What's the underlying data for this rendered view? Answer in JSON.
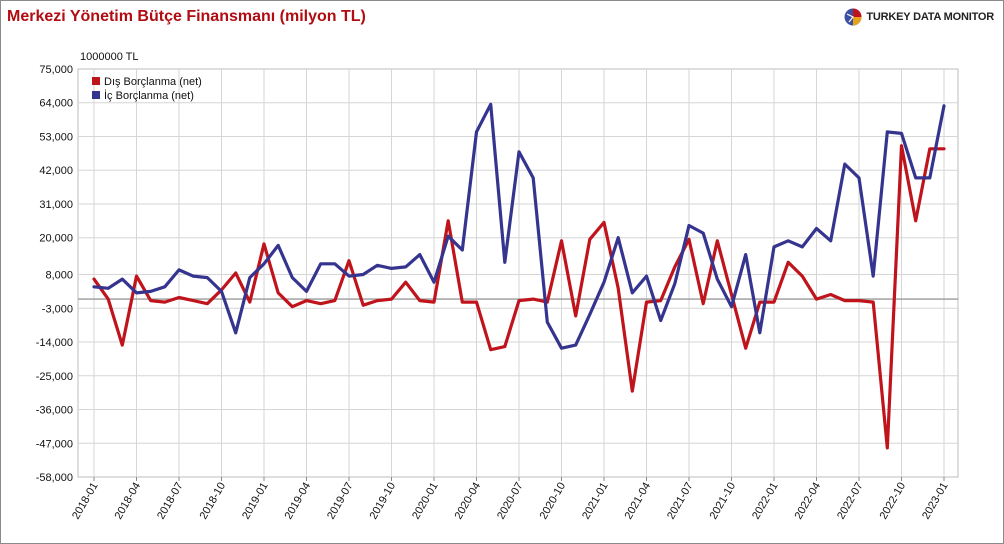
{
  "header": {
    "title": "Merkezi Yönetim Bütçe Finansmanı (milyon TL)",
    "brand": "TURKEY DATA MONITOR",
    "colors": {
      "title": "#b00c12",
      "brand_text": "#222222"
    }
  },
  "chart_data": {
    "type": "line",
    "title": "Merkezi Yönetim Bütçe Finansmanı (milyon TL)",
    "unit_label": "1000000 TL",
    "xlabel": "",
    "ylabel": "",
    "ylim": [
      -58000,
      75000
    ],
    "yticks": [
      75000,
      64000,
      53000,
      42000,
      31000,
      20000,
      8000,
      -3000,
      -14000,
      -25000,
      -36000,
      -47000,
      -58000
    ],
    "ytick_labels": [
      "75,000",
      "64,000",
      "53,000",
      "42,000",
      "31,000",
      "20,000",
      "8,000",
      "-3,000",
      "-14,000",
      "-25,000",
      "-36,000",
      "-47,000",
      "-58,000"
    ],
    "x": [
      "2018-01",
      "2018-02",
      "2018-03",
      "2018-04",
      "2018-05",
      "2018-06",
      "2018-07",
      "2018-08",
      "2018-09",
      "2018-10",
      "2018-11",
      "2018-12",
      "2019-01",
      "2019-02",
      "2019-03",
      "2019-04",
      "2019-05",
      "2019-06",
      "2019-07",
      "2019-08",
      "2019-09",
      "2019-10",
      "2019-11",
      "2019-12",
      "2020-01",
      "2020-02",
      "2020-03",
      "2020-04",
      "2020-05",
      "2020-06",
      "2020-07",
      "2020-08",
      "2020-09",
      "2020-10",
      "2020-11",
      "2020-12",
      "2021-01",
      "2021-02",
      "2021-03",
      "2021-04",
      "2021-05",
      "2021-06",
      "2021-07",
      "2021-08",
      "2021-09",
      "2021-10",
      "2021-11",
      "2021-12",
      "2022-01",
      "2022-02",
      "2022-03",
      "2022-04",
      "2022-05",
      "2022-06",
      "2022-07",
      "2022-08",
      "2022-09",
      "2022-10",
      "2022-11",
      "2022-12",
      "2023-01"
    ],
    "xtick_labels": [
      "2018-01",
      "2018-04",
      "2018-07",
      "2018-10",
      "2019-01",
      "2019-04",
      "2019-07",
      "2019-10",
      "2020-01",
      "2020-04",
      "2020-07",
      "2020-10",
      "2021-01",
      "2021-04",
      "2021-07",
      "2021-10",
      "2022-01",
      "2022-04",
      "2022-07",
      "2022-10",
      "2023-01"
    ],
    "zero_line": 0,
    "grid": true,
    "legend_position": "top-left",
    "series": [
      {
        "name": "Dış Borçlanma (net)",
        "color": "#c0141c",
        "values": [
          6500,
          0,
          -15000,
          7500,
          -500,
          -1000,
          500,
          -500,
          -1500,
          3000,
          8500,
          -1000,
          18000,
          2000,
          -2500,
          -500,
          -1500,
          -500,
          12500,
          -2000,
          -500,
          0,
          5500,
          -500,
          -1000,
          25500,
          -1000,
          -1000,
          -16500,
          -15500,
          -500,
          0,
          -1000,
          19000,
          -5500,
          19500,
          25000,
          3500,
          -30000,
          -1000,
          -500,
          10500,
          19500,
          -1500,
          19000,
          1500,
          -16000,
          -1000,
          -1000,
          12000,
          7500,
          0,
          1500,
          -500,
          -500,
          -1000,
          -48500,
          50000,
          25500,
          49000,
          49000
        ]
      },
      {
        "name": "İç Borçlanma (net)",
        "color": "#35348f",
        "values": [
          4000,
          3500,
          6500,
          2000,
          2500,
          4000,
          9500,
          7500,
          7000,
          2500,
          -11000,
          7000,
          11500,
          17500,
          7000,
          2500,
          11500,
          11500,
          7500,
          8000,
          11000,
          10000,
          10500,
          14500,
          5500,
          20500,
          16000,
          54500,
          63500,
          12000,
          48000,
          39500,
          -7500,
          -16000,
          -15000,
          -5000,
          5500,
          20000,
          2000,
          7500,
          -7000,
          5000,
          24000,
          21500,
          6500,
          -2500,
          14500,
          -11000,
          17000,
          19000,
          17000,
          23000,
          19000,
          44000,
          39500,
          7500,
          54500,
          54000,
          39500,
          39500,
          63000
        ]
      }
    ]
  }
}
